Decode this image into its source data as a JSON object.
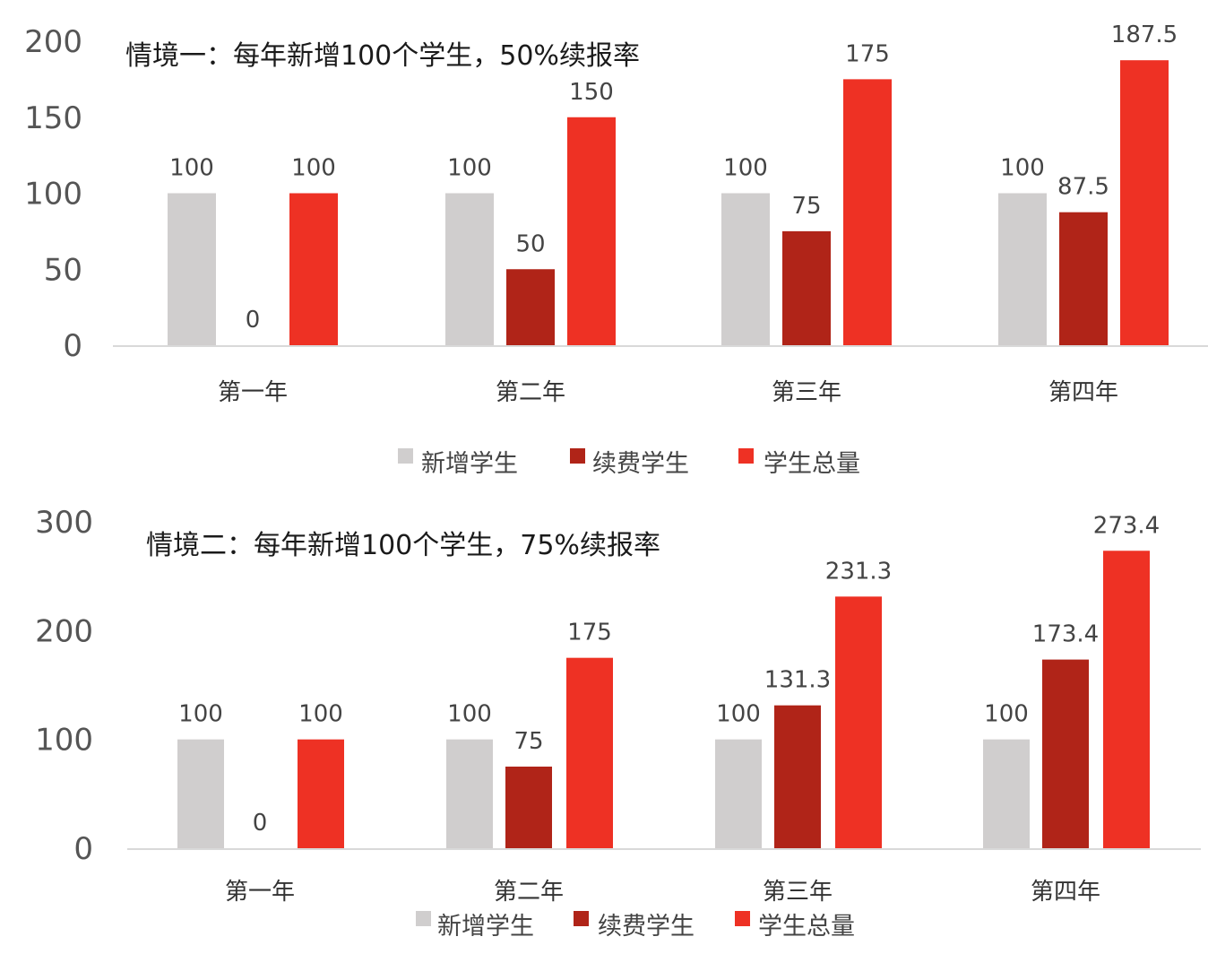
{
  "chart_data": [
    {
      "type": "bar",
      "title": "情境一：每年新增100个学生，50%续报率",
      "categories": [
        "第一年",
        "第二年",
        "第三年",
        "第四年"
      ],
      "series": [
        {
          "name": "新增学生",
          "values": [
            100,
            100,
            100,
            100
          ],
          "labels": [
            "100",
            "100",
            "100",
            "100"
          ],
          "color": "#D0CECE"
        },
        {
          "name": "续费学生",
          "values": [
            0,
            50,
            75,
            87.5
          ],
          "labels": [
            "0",
            "50",
            "75",
            "87.5"
          ],
          "color": "#B02418"
        },
        {
          "name": "学生总量",
          "values": [
            100,
            150,
            175,
            187.5
          ],
          "labels": [
            "100",
            "150",
            "175",
            "187.5"
          ],
          "color": "#EE3124"
        }
      ],
      "yticks": [
        "0",
        "50",
        "100",
        "150",
        "200"
      ],
      "ylim": [
        0,
        200
      ],
      "grid": false,
      "legend": "bottom"
    },
    {
      "type": "bar",
      "title": "情境二：每年新增100个学生，75%续报率",
      "categories": [
        "第一年",
        "第二年",
        "第三年",
        "第四年"
      ],
      "series": [
        {
          "name": "新增学生",
          "values": [
            100,
            100,
            100,
            100
          ],
          "labels": [
            "100",
            "100",
            "100",
            "100"
          ],
          "color": "#D0CECE"
        },
        {
          "name": "续费学生",
          "values": [
            0,
            75,
            131.3,
            173.4
          ],
          "labels": [
            "0",
            "75",
            "131.3",
            "173.4"
          ],
          "color": "#B02418"
        },
        {
          "name": "学生总量",
          "values": [
            100,
            175,
            231.3,
            273.4
          ],
          "labels": [
            "100",
            "175",
            "231.3",
            "273.4"
          ],
          "color": "#EE3124"
        }
      ],
      "yticks": [
        "0",
        "100",
        "200",
        "300"
      ],
      "ylim": [
        0,
        300
      ],
      "grid": false,
      "legend": "bottom"
    }
  ]
}
